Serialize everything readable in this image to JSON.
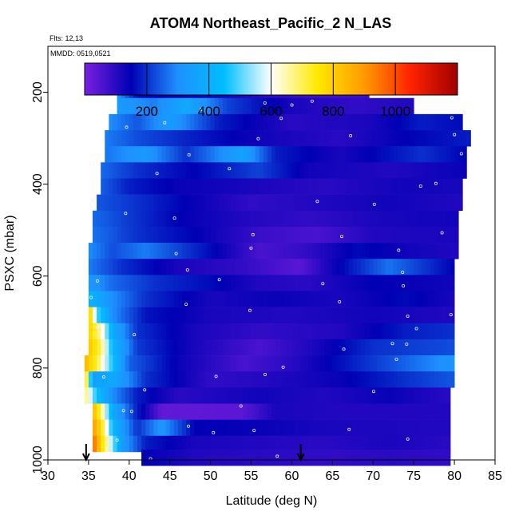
{
  "chart_data": {
    "type": "heatmap",
    "title": "ATOM4 Northeast_Pacific_2 N_LAS",
    "subtitle_flights": "Flts: 12,13",
    "subtitle_dates": "MMDD: 0519,0521",
    "xlabel": "Latitude (deg N)",
    "ylabel": "PSXC (mbar)",
    "xlim": [
      30,
      85
    ],
    "ylim": [
      1000,
      100
    ],
    "x_ticks": [
      "30",
      "35",
      "40",
      "45",
      "50",
      "55",
      "60",
      "65",
      "70",
      "75",
      "80",
      "85"
    ],
    "y_ticks": [
      "200",
      "400",
      "600",
      "800",
      "1000"
    ],
    "colorbar": {
      "range": [
        0,
        1200
      ],
      "tick_labels": [
        "200",
        "400",
        "600",
        "800",
        "1000"
      ],
      "colors": [
        "#7a1fe0",
        "#0000b4",
        "#1e90ff",
        "#00bfff",
        "#ffffff",
        "#ffe800",
        "#ff9a00",
        "#ff2200",
        "#a00000"
      ]
    },
    "arrows_latitude": [
      34.7,
      61.1
    ],
    "rows": [
      {
        "p": 195,
        "lat_min": 38.5,
        "lat_max": 69.5,
        "v": [
          {
            "lat": 38.5,
            "val": 320
          },
          {
            "lat": 41,
            "val": 160
          },
          {
            "lat": 50,
            "val": 130
          },
          {
            "lat": 64,
            "val": 70
          },
          {
            "lat": 69.5,
            "val": 80
          }
        ]
      },
      {
        "p": 230,
        "lat_min": 38.5,
        "lat_max": 75.0,
        "v": [
          {
            "lat": 38.5,
            "val": 340
          },
          {
            "lat": 43,
            "val": 280
          },
          {
            "lat": 47,
            "val": 380
          },
          {
            "lat": 52,
            "val": 220
          },
          {
            "lat": 60,
            "val": 120
          },
          {
            "lat": 68,
            "val": 90
          },
          {
            "lat": 75,
            "val": 110
          }
        ]
      },
      {
        "p": 265,
        "lat_min": 37.5,
        "lat_max": 81.0,
        "v": [
          {
            "lat": 37.5,
            "val": 300
          },
          {
            "lat": 41,
            "val": 240
          },
          {
            "lat": 45,
            "val": 340
          },
          {
            "lat": 51,
            "val": 180
          },
          {
            "lat": 60,
            "val": 100
          },
          {
            "lat": 70,
            "val": 120
          },
          {
            "lat": 76,
            "val": 180
          },
          {
            "lat": 81,
            "val": 160
          }
        ]
      },
      {
        "p": 300,
        "lat_min": 37.0,
        "lat_max": 82.0,
        "v": [
          {
            "lat": 37,
            "val": 280
          },
          {
            "lat": 41,
            "val": 230
          },
          {
            "lat": 48,
            "val": 180
          },
          {
            "lat": 56,
            "val": 130
          },
          {
            "lat": 66,
            "val": 100
          },
          {
            "lat": 74,
            "val": 150
          },
          {
            "lat": 82,
            "val": 180
          }
        ]
      },
      {
        "p": 335,
        "lat_min": 37.0,
        "lat_max": 81.5,
        "v": [
          {
            "lat": 37,
            "val": 270
          },
          {
            "lat": 42,
            "val": 330
          },
          {
            "lat": 47,
            "val": 200
          },
          {
            "lat": 54,
            "val": 360
          },
          {
            "lat": 58,
            "val": 180
          },
          {
            "lat": 66,
            "val": 120
          },
          {
            "lat": 76,
            "val": 200
          },
          {
            "lat": 81.5,
            "val": 150
          }
        ]
      },
      {
        "p": 370,
        "lat_min": 36.5,
        "lat_max": 81.5,
        "v": [
          {
            "lat": 36.5,
            "val": 260
          },
          {
            "lat": 41,
            "val": 200
          },
          {
            "lat": 48,
            "val": 150
          },
          {
            "lat": 56,
            "val": 220
          },
          {
            "lat": 62,
            "val": 130
          },
          {
            "lat": 72,
            "val": 110
          },
          {
            "lat": 81.5,
            "val": 140
          }
        ]
      },
      {
        "p": 405,
        "lat_min": 36.5,
        "lat_max": 81.0,
        "v": [
          {
            "lat": 36.5,
            "val": 250
          },
          {
            "lat": 40,
            "val": 180
          },
          {
            "lat": 46,
            "val": 140
          },
          {
            "lat": 55,
            "val": 120
          },
          {
            "lat": 64,
            "val": 100
          },
          {
            "lat": 74,
            "val": 130
          },
          {
            "lat": 81,
            "val": 120
          }
        ]
      },
      {
        "p": 440,
        "lat_min": 36.0,
        "lat_max": 81.0,
        "v": [
          {
            "lat": 36,
            "val": 240
          },
          {
            "lat": 41,
            "val": 200
          },
          {
            "lat": 48,
            "val": 140
          },
          {
            "lat": 55,
            "val": 90
          },
          {
            "lat": 63,
            "val": 110
          },
          {
            "lat": 72,
            "val": 130
          },
          {
            "lat": 81,
            "val": 110
          }
        ]
      },
      {
        "p": 475,
        "lat_min": 35.5,
        "lat_max": 80.5,
        "v": [
          {
            "lat": 35.5,
            "val": 260
          },
          {
            "lat": 40,
            "val": 210
          },
          {
            "lat": 46,
            "val": 150
          },
          {
            "lat": 54,
            "val": 110
          },
          {
            "lat": 62,
            "val": 90
          },
          {
            "lat": 71,
            "val": 120
          },
          {
            "lat": 80.5,
            "val": 130
          }
        ]
      },
      {
        "p": 510,
        "lat_min": 35.5,
        "lat_max": 80.5,
        "v": [
          {
            "lat": 35.5,
            "val": 270
          },
          {
            "lat": 41,
            "val": 200
          },
          {
            "lat": 48,
            "val": 150
          },
          {
            "lat": 56,
            "val": 80
          },
          {
            "lat": 63,
            "val": 60
          },
          {
            "lat": 70,
            "val": 110
          },
          {
            "lat": 80.5,
            "val": 120
          }
        ]
      },
      {
        "p": 545,
        "lat_min": 35.0,
        "lat_max": 80.5,
        "v": [
          {
            "lat": 35,
            "val": 300
          },
          {
            "lat": 38,
            "val": 230
          },
          {
            "lat": 42,
            "val": 280
          },
          {
            "lat": 50,
            "val": 160
          },
          {
            "lat": 56,
            "val": 60
          },
          {
            "lat": 62,
            "val": 90
          },
          {
            "lat": 68,
            "val": 160
          },
          {
            "lat": 74,
            "val": 130
          },
          {
            "lat": 80.5,
            "val": 110
          }
        ]
      },
      {
        "p": 580,
        "lat_min": 35.0,
        "lat_max": 80.0,
        "v": [
          {
            "lat": 35,
            "val": 280
          },
          {
            "lat": 39,
            "val": 200
          },
          {
            "lat": 46,
            "val": 120
          },
          {
            "lat": 54,
            "val": 90
          },
          {
            "lat": 61,
            "val": 40
          },
          {
            "lat": 64,
            "val": 110
          },
          {
            "lat": 72,
            "val": 270
          },
          {
            "lat": 80,
            "val": 150
          }
        ]
      },
      {
        "p": 615,
        "lat_min": 35.0,
        "lat_max": 80.0,
        "v": [
          {
            "lat": 35,
            "val": 330
          },
          {
            "lat": 38,
            "val": 260
          },
          {
            "lat": 43,
            "val": 200
          },
          {
            "lat": 50,
            "val": 160
          },
          {
            "lat": 56,
            "val": 110
          },
          {
            "lat": 62,
            "val": 100
          },
          {
            "lat": 70,
            "val": 150
          },
          {
            "lat": 80,
            "val": 130
          }
        ]
      },
      {
        "p": 650,
        "lat_min": 35.0,
        "lat_max": 80.0,
        "v": [
          {
            "lat": 35,
            "val": 420
          },
          {
            "lat": 38,
            "val": 300
          },
          {
            "lat": 42,
            "val": 200
          },
          {
            "lat": 50,
            "val": 120
          },
          {
            "lat": 58,
            "val": 140
          },
          {
            "lat": 66,
            "val": 120
          },
          {
            "lat": 74,
            "val": 160
          },
          {
            "lat": 80,
            "val": 120
          }
        ]
      },
      {
        "p": 685,
        "lat_min": 35.0,
        "lat_max": 80.0,
        "v": [
          {
            "lat": 35,
            "val": 850
          },
          {
            "lat": 36,
            "val": 500
          },
          {
            "lat": 38,
            "val": 300
          },
          {
            "lat": 42,
            "val": 170
          },
          {
            "lat": 50,
            "val": 120
          },
          {
            "lat": 60,
            "val": 110
          },
          {
            "lat": 70,
            "val": 130
          },
          {
            "lat": 80,
            "val": 110
          }
        ]
      },
      {
        "p": 720,
        "lat_min": 35.0,
        "lat_max": 80.0,
        "v": [
          {
            "lat": 35,
            "val": 800
          },
          {
            "lat": 36.5,
            "val": 650
          },
          {
            "lat": 38,
            "val": 380
          },
          {
            "lat": 41,
            "val": 200
          },
          {
            "lat": 48,
            "val": 120
          },
          {
            "lat": 56,
            "val": 90
          },
          {
            "lat": 66,
            "val": 110
          },
          {
            "lat": 74,
            "val": 180
          },
          {
            "lat": 80,
            "val": 200
          }
        ]
      },
      {
        "p": 755,
        "lat_min": 35.0,
        "lat_max": 80.0,
        "v": [
          {
            "lat": 35,
            "val": 820
          },
          {
            "lat": 36.5,
            "val": 700
          },
          {
            "lat": 38,
            "val": 420
          },
          {
            "lat": 41,
            "val": 210
          },
          {
            "lat": 48,
            "val": 120
          },
          {
            "lat": 56,
            "val": 60
          },
          {
            "lat": 62,
            "val": 110
          },
          {
            "lat": 70,
            "val": 200
          },
          {
            "lat": 80,
            "val": 230
          }
        ]
      },
      {
        "p": 790,
        "lat_min": 34.5,
        "lat_max": 80.0,
        "v": [
          {
            "lat": 34.5,
            "val": 850
          },
          {
            "lat": 36,
            "val": 720
          },
          {
            "lat": 38,
            "val": 450
          },
          {
            "lat": 40,
            "val": 250
          },
          {
            "lat": 46,
            "val": 140
          },
          {
            "lat": 54,
            "val": 60
          },
          {
            "lat": 60,
            "val": 100
          },
          {
            "lat": 70,
            "val": 210
          },
          {
            "lat": 80,
            "val": 320
          }
        ]
      },
      {
        "p": 825,
        "lat_min": 34.5,
        "lat_max": 80.0,
        "v": [
          {
            "lat": 34.5,
            "val": 820
          },
          {
            "lat": 35.5,
            "val": 350
          },
          {
            "lat": 38,
            "val": 380
          },
          {
            "lat": 42,
            "val": 200
          },
          {
            "lat": 50,
            "val": 90
          },
          {
            "lat": 58,
            "val": 110
          },
          {
            "lat": 66,
            "val": 140
          },
          {
            "lat": 74,
            "val": 200
          },
          {
            "lat": 80,
            "val": 240
          }
        ]
      },
      {
        "p": 860,
        "lat_min": 34.5,
        "lat_max": 79.5,
        "v": [
          {
            "lat": 34.5,
            "val": 700
          },
          {
            "lat": 36,
            "val": 450
          },
          {
            "lat": 38,
            "val": 300
          },
          {
            "lat": 41,
            "val": 180
          },
          {
            "lat": 46,
            "val": 100
          },
          {
            "lat": 56,
            "val": 130
          },
          {
            "lat": 64,
            "val": 110
          },
          {
            "lat": 72,
            "val": 140
          },
          {
            "lat": 79.5,
            "val": 100
          }
        ]
      },
      {
        "p": 895,
        "lat_min": 35.5,
        "lat_max": 79.5,
        "v": [
          {
            "lat": 35.5,
            "val": 850
          },
          {
            "lat": 36.5,
            "val": 700
          },
          {
            "lat": 38,
            "val": 380
          },
          {
            "lat": 41,
            "val": 180
          },
          {
            "lat": 44,
            "val": 30
          },
          {
            "lat": 54,
            "val": 40
          },
          {
            "lat": 58,
            "val": 120
          },
          {
            "lat": 66,
            "val": 110
          },
          {
            "lat": 79.5,
            "val": 110
          }
        ]
      },
      {
        "p": 930,
        "lat_min": 35.5,
        "lat_max": 79.5,
        "v": [
          {
            "lat": 35.5,
            "val": 900
          },
          {
            "lat": 36.5,
            "val": 780
          },
          {
            "lat": 38,
            "val": 420
          },
          {
            "lat": 41,
            "val": 200
          },
          {
            "lat": 44,
            "val": 320
          },
          {
            "lat": 48,
            "val": 150
          },
          {
            "lat": 56,
            "val": 140
          },
          {
            "lat": 64,
            "val": 120
          },
          {
            "lat": 79.5,
            "val": 110
          }
        ]
      },
      {
        "p": 965,
        "lat_min": 35.5,
        "lat_max": 79.5,
        "v": [
          {
            "lat": 35.5,
            "val": 980
          },
          {
            "lat": 37,
            "val": 700
          },
          {
            "lat": 39,
            "val": 350
          },
          {
            "lat": 42,
            "val": 180
          },
          {
            "lat": 48,
            "val": 120
          },
          {
            "lat": 56,
            "val": 110
          },
          {
            "lat": 64,
            "val": 100
          },
          {
            "lat": 72,
            "val": 120
          },
          {
            "lat": 79.5,
            "val": 100
          }
        ]
      },
      {
        "p": 995,
        "lat_min": 41.5,
        "lat_max": 79.5,
        "v": [
          {
            "lat": 41.5,
            "val": 150
          },
          {
            "lat": 48,
            "val": 110
          },
          {
            "lat": 56,
            "val": 100
          },
          {
            "lat": 64,
            "val": 90
          },
          {
            "lat": 72,
            "val": 100
          },
          {
            "lat": 79.5,
            "val": 90
          }
        ]
      }
    ]
  }
}
